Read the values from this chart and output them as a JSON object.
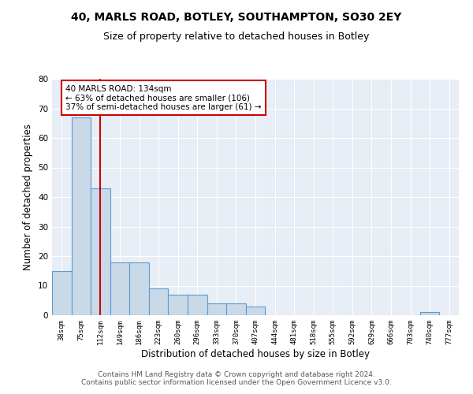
{
  "title1": "40, MARLS ROAD, BOTLEY, SOUTHAMPTON, SO30 2EY",
  "title2": "Size of property relative to detached houses in Botley",
  "xlabel": "Distribution of detached houses by size in Botley",
  "ylabel": "Number of detached properties",
  "categories": [
    "38sqm",
    "75sqm",
    "112sqm",
    "149sqm",
    "186sqm",
    "223sqm",
    "260sqm",
    "296sqm",
    "333sqm",
    "370sqm",
    "407sqm",
    "444sqm",
    "481sqm",
    "518sqm",
    "555sqm",
    "592sqm",
    "629sqm",
    "666sqm",
    "703sqm",
    "740sqm",
    "777sqm"
  ],
  "values": [
    15,
    67,
    43,
    18,
    18,
    9,
    7,
    7,
    4,
    4,
    3,
    0,
    0,
    0,
    0,
    0,
    0,
    0,
    0,
    1,
    0
  ],
  "bar_color": "#c9d9e8",
  "bar_edge_color": "#5b9bd5",
  "vline_x": 2,
  "vline_color": "#cc0000",
  "annotation_text": "40 MARLS ROAD: 134sqm\n← 63% of detached houses are smaller (106)\n37% of semi-detached houses are larger (61) →",
  "annotation_box_color": "white",
  "annotation_box_edge_color": "#cc0000",
  "ylim": [
    0,
    80
  ],
  "yticks": [
    0,
    10,
    20,
    30,
    40,
    50,
    60,
    70,
    80
  ],
  "background_color": "#e8eef5",
  "footer_text": "Contains HM Land Registry data © Crown copyright and database right 2024.\nContains public sector information licensed under the Open Government Licence v3.0.",
  "title1_fontsize": 10,
  "title2_fontsize": 9,
  "xlabel_fontsize": 8.5,
  "ylabel_fontsize": 8.5,
  "annotation_fontsize": 7.5,
  "footer_fontsize": 6.5
}
